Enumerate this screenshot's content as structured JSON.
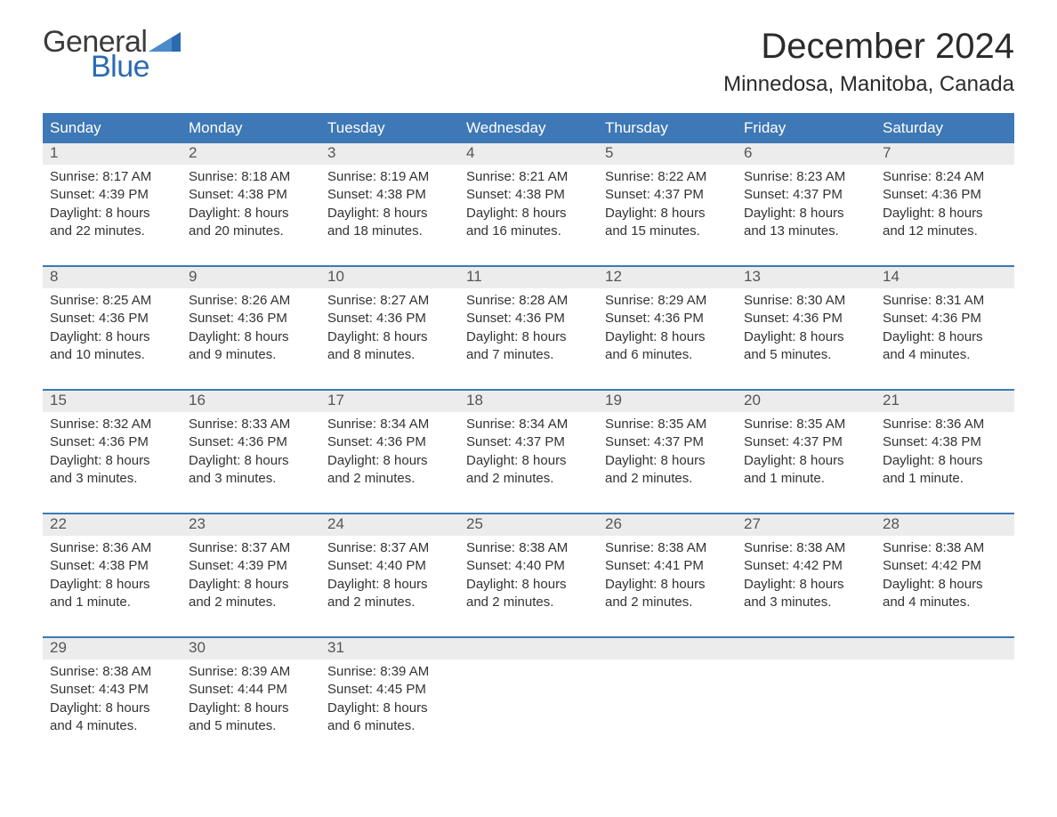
{
  "logo": {
    "text_top": "General",
    "text_bottom": "Blue"
  },
  "title": "December 2024",
  "location": "Minnedosa, Manitoba, Canada",
  "colors": {
    "header_bg": "#3e78b6",
    "header_text": "#ffffff",
    "date_row_bg": "#ececec",
    "week_border": "#3e78b6",
    "body_text": "#333333",
    "logo_gray": "#3b3b3b",
    "logo_blue": "#2a6bb0"
  },
  "day_names": [
    "Sunday",
    "Monday",
    "Tuesday",
    "Wednesday",
    "Thursday",
    "Friday",
    "Saturday"
  ],
  "weeks": [
    [
      {
        "date": "1",
        "sunrise": "8:17 AM",
        "sunset": "4:39 PM",
        "daylight_l1": "Daylight: 8 hours",
        "daylight_l2": "and 22 minutes."
      },
      {
        "date": "2",
        "sunrise": "8:18 AM",
        "sunset": "4:38 PM",
        "daylight_l1": "Daylight: 8 hours",
        "daylight_l2": "and 20 minutes."
      },
      {
        "date": "3",
        "sunrise": "8:19 AM",
        "sunset": "4:38 PM",
        "daylight_l1": "Daylight: 8 hours",
        "daylight_l2": "and 18 minutes."
      },
      {
        "date": "4",
        "sunrise": "8:21 AM",
        "sunset": "4:38 PM",
        "daylight_l1": "Daylight: 8 hours",
        "daylight_l2": "and 16 minutes."
      },
      {
        "date": "5",
        "sunrise": "8:22 AM",
        "sunset": "4:37 PM",
        "daylight_l1": "Daylight: 8 hours",
        "daylight_l2": "and 15 minutes."
      },
      {
        "date": "6",
        "sunrise": "8:23 AM",
        "sunset": "4:37 PM",
        "daylight_l1": "Daylight: 8 hours",
        "daylight_l2": "and 13 minutes."
      },
      {
        "date": "7",
        "sunrise": "8:24 AM",
        "sunset": "4:36 PM",
        "daylight_l1": "Daylight: 8 hours",
        "daylight_l2": "and 12 minutes."
      }
    ],
    [
      {
        "date": "8",
        "sunrise": "8:25 AM",
        "sunset": "4:36 PM",
        "daylight_l1": "Daylight: 8 hours",
        "daylight_l2": "and 10 minutes."
      },
      {
        "date": "9",
        "sunrise": "8:26 AM",
        "sunset": "4:36 PM",
        "daylight_l1": "Daylight: 8 hours",
        "daylight_l2": "and 9 minutes."
      },
      {
        "date": "10",
        "sunrise": "8:27 AM",
        "sunset": "4:36 PM",
        "daylight_l1": "Daylight: 8 hours",
        "daylight_l2": "and 8 minutes."
      },
      {
        "date": "11",
        "sunrise": "8:28 AM",
        "sunset": "4:36 PM",
        "daylight_l1": "Daylight: 8 hours",
        "daylight_l2": "and 7 minutes."
      },
      {
        "date": "12",
        "sunrise": "8:29 AM",
        "sunset": "4:36 PM",
        "daylight_l1": "Daylight: 8 hours",
        "daylight_l2": "and 6 minutes."
      },
      {
        "date": "13",
        "sunrise": "8:30 AM",
        "sunset": "4:36 PM",
        "daylight_l1": "Daylight: 8 hours",
        "daylight_l2": "and 5 minutes."
      },
      {
        "date": "14",
        "sunrise": "8:31 AM",
        "sunset": "4:36 PM",
        "daylight_l1": "Daylight: 8 hours",
        "daylight_l2": "and 4 minutes."
      }
    ],
    [
      {
        "date": "15",
        "sunrise": "8:32 AM",
        "sunset": "4:36 PM",
        "daylight_l1": "Daylight: 8 hours",
        "daylight_l2": "and 3 minutes."
      },
      {
        "date": "16",
        "sunrise": "8:33 AM",
        "sunset": "4:36 PM",
        "daylight_l1": "Daylight: 8 hours",
        "daylight_l2": "and 3 minutes."
      },
      {
        "date": "17",
        "sunrise": "8:34 AM",
        "sunset": "4:36 PM",
        "daylight_l1": "Daylight: 8 hours",
        "daylight_l2": "and 2 minutes."
      },
      {
        "date": "18",
        "sunrise": "8:34 AM",
        "sunset": "4:37 PM",
        "daylight_l1": "Daylight: 8 hours",
        "daylight_l2": "and 2 minutes."
      },
      {
        "date": "19",
        "sunrise": "8:35 AM",
        "sunset": "4:37 PM",
        "daylight_l1": "Daylight: 8 hours",
        "daylight_l2": "and 2 minutes."
      },
      {
        "date": "20",
        "sunrise": "8:35 AM",
        "sunset": "4:37 PM",
        "daylight_l1": "Daylight: 8 hours",
        "daylight_l2": "and 1 minute."
      },
      {
        "date": "21",
        "sunrise": "8:36 AM",
        "sunset": "4:38 PM",
        "daylight_l1": "Daylight: 8 hours",
        "daylight_l2": "and 1 minute."
      }
    ],
    [
      {
        "date": "22",
        "sunrise": "8:36 AM",
        "sunset": "4:38 PM",
        "daylight_l1": "Daylight: 8 hours",
        "daylight_l2": "and 1 minute."
      },
      {
        "date": "23",
        "sunrise": "8:37 AM",
        "sunset": "4:39 PM",
        "daylight_l1": "Daylight: 8 hours",
        "daylight_l2": "and 2 minutes."
      },
      {
        "date": "24",
        "sunrise": "8:37 AM",
        "sunset": "4:40 PM",
        "daylight_l1": "Daylight: 8 hours",
        "daylight_l2": "and 2 minutes."
      },
      {
        "date": "25",
        "sunrise": "8:38 AM",
        "sunset": "4:40 PM",
        "daylight_l1": "Daylight: 8 hours",
        "daylight_l2": "and 2 minutes."
      },
      {
        "date": "26",
        "sunrise": "8:38 AM",
        "sunset": "4:41 PM",
        "daylight_l1": "Daylight: 8 hours",
        "daylight_l2": "and 2 minutes."
      },
      {
        "date": "27",
        "sunrise": "8:38 AM",
        "sunset": "4:42 PM",
        "daylight_l1": "Daylight: 8 hours",
        "daylight_l2": "and 3 minutes."
      },
      {
        "date": "28",
        "sunrise": "8:38 AM",
        "sunset": "4:42 PM",
        "daylight_l1": "Daylight: 8 hours",
        "daylight_l2": "and 4 minutes."
      }
    ],
    [
      {
        "date": "29",
        "sunrise": "8:38 AM",
        "sunset": "4:43 PM",
        "daylight_l1": "Daylight: 8 hours",
        "daylight_l2": "and 4 minutes."
      },
      {
        "date": "30",
        "sunrise": "8:39 AM",
        "sunset": "4:44 PM",
        "daylight_l1": "Daylight: 8 hours",
        "daylight_l2": "and 5 minutes."
      },
      {
        "date": "31",
        "sunrise": "8:39 AM",
        "sunset": "4:45 PM",
        "daylight_l1": "Daylight: 8 hours",
        "daylight_l2": "and 6 minutes."
      },
      null,
      null,
      null,
      null
    ]
  ],
  "labels": {
    "sunrise_prefix": "Sunrise: ",
    "sunset_prefix": "Sunset: "
  }
}
